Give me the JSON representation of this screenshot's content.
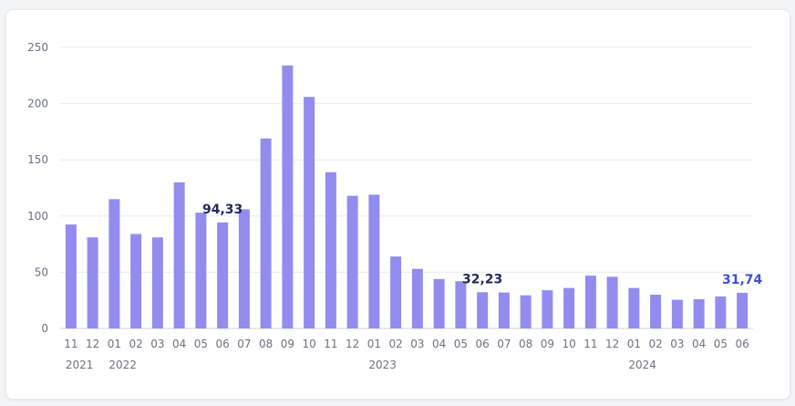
{
  "chart_data": {
    "type": "bar",
    "categories": [
      "11",
      "12",
      "01",
      "02",
      "03",
      "04",
      "05",
      "06",
      "07",
      "08",
      "09",
      "10",
      "11",
      "12",
      "01",
      "02",
      "03",
      "04",
      "05",
      "06",
      "07",
      "08",
      "09",
      "10",
      "11",
      "12",
      "01",
      "02",
      "03",
      "04",
      "05",
      "06"
    ],
    "year_labels": [
      {
        "index": 0,
        "label": "2021"
      },
      {
        "index": 2,
        "label": "2022"
      },
      {
        "index": 14,
        "label": "2023"
      },
      {
        "index": 26,
        "label": "2024"
      }
    ],
    "values": [
      92.5,
      81,
      115,
      84,
      81,
      130,
      103,
      94.33,
      106,
      169,
      234,
      206,
      139,
      118,
      119,
      64,
      53,
      44,
      42,
      32.23,
      32,
      29.5,
      34,
      36,
      47,
      46,
      36,
      30,
      25.5,
      26,
      28.5,
      31.74
    ],
    "yticks": [
      0,
      50,
      100,
      150,
      200,
      250
    ],
    "ylim": [
      0,
      250
    ],
    "grid": true,
    "annotations": [
      {
        "index": 7,
        "text": "94,33",
        "color": "#1f2a5a"
      },
      {
        "index": 19,
        "text": "32,23",
        "color": "#1f2a5a"
      },
      {
        "index": 31,
        "text": "31,74",
        "color": "#3b4fd6"
      }
    ],
    "colors": {
      "bar": "#938cef",
      "grid": "#e9ebf1",
      "axis": "#cfd3dc"
    }
  }
}
